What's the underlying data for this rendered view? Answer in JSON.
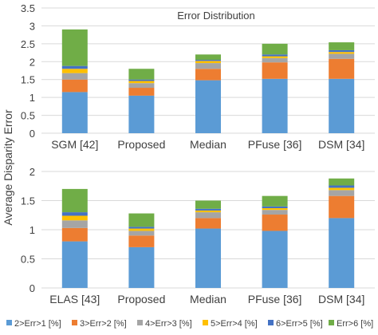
{
  "figure": {
    "ylabel": "Average Disparity Error"
  },
  "legend": {
    "entries": [
      "2>Err>1 [%]",
      "3>Err>2 [%]",
      "4>Err>3 [%]",
      "5>Err>4 [%]",
      "6>Err>5 [%]",
      "Err>6 [%]"
    ],
    "colors": [
      "#5B9BD5",
      "#ED7D31",
      "#A5A5A5",
      "#FFC000",
      "#4472C4",
      "#70AD47"
    ],
    "placement": "bottom"
  },
  "chart_data": [
    {
      "type": "bar",
      "stacked": true,
      "title": "Error Distribution",
      "categories": [
        "SGM [42]",
        "Proposed",
        "Median",
        "PFuse [36]",
        "DSM [34]"
      ],
      "ylim": [
        0,
        3.5
      ],
      "yticks": [
        0,
        0.5,
        1,
        1.5,
        2,
        2.5,
        3,
        3.5
      ],
      "ytick_labels": [
        "0",
        "0.5",
        "1",
        "1.5",
        "2",
        "2.5",
        "3",
        "3.5"
      ],
      "grid": true,
      "series": [
        {
          "name": "2>Err>1 [%]",
          "values": [
            1.15,
            1.05,
            1.48,
            1.52,
            1.52
          ]
        },
        {
          "name": "3>Err>2 [%]",
          "values": [
            0.35,
            0.22,
            0.32,
            0.46,
            0.56
          ]
        },
        {
          "name": "4>Err>3 [%]",
          "values": [
            0.18,
            0.13,
            0.16,
            0.12,
            0.14
          ]
        },
        {
          "name": "5>Err>4 [%]",
          "values": [
            0.12,
            0.06,
            0.06,
            0.05,
            0.05
          ]
        },
        {
          "name": "6>Err>5 [%]",
          "values": [
            0.08,
            0.04,
            0.03,
            0.05,
            0.05
          ]
        },
        {
          "name": "Err>6 [%]",
          "values": [
            1.02,
            0.3,
            0.15,
            0.3,
            0.22
          ]
        }
      ]
    },
    {
      "type": "bar",
      "stacked": true,
      "title": "",
      "categories": [
        "ELAS [43]",
        "Proposed",
        "Median",
        "PFuse [36]",
        "DSM [34]"
      ],
      "ylim": [
        0,
        2
      ],
      "yticks": [
        0,
        0.5,
        1,
        1.5,
        2
      ],
      "ytick_labels": [
        "0",
        "0.5",
        "1",
        "1.5",
        "2"
      ],
      "grid": true,
      "series": [
        {
          "name": "2>Err>1 [%]",
          "values": [
            0.8,
            0.7,
            1.02,
            0.98,
            1.2
          ]
        },
        {
          "name": "3>Err>2 [%]",
          "values": [
            0.23,
            0.2,
            0.18,
            0.28,
            0.38
          ]
        },
        {
          "name": "4>Err>3 [%]",
          "values": [
            0.13,
            0.08,
            0.1,
            0.08,
            0.1
          ]
        },
        {
          "name": "5>Err>4 [%]",
          "values": [
            0.08,
            0.04,
            0.03,
            0.03,
            0.04
          ]
        },
        {
          "name": "6>Err>5 [%]",
          "values": [
            0.06,
            0.03,
            0.03,
            0.03,
            0.04
          ]
        },
        {
          "name": "Err>6 [%]",
          "values": [
            0.4,
            0.23,
            0.14,
            0.18,
            0.12
          ]
        }
      ]
    }
  ]
}
